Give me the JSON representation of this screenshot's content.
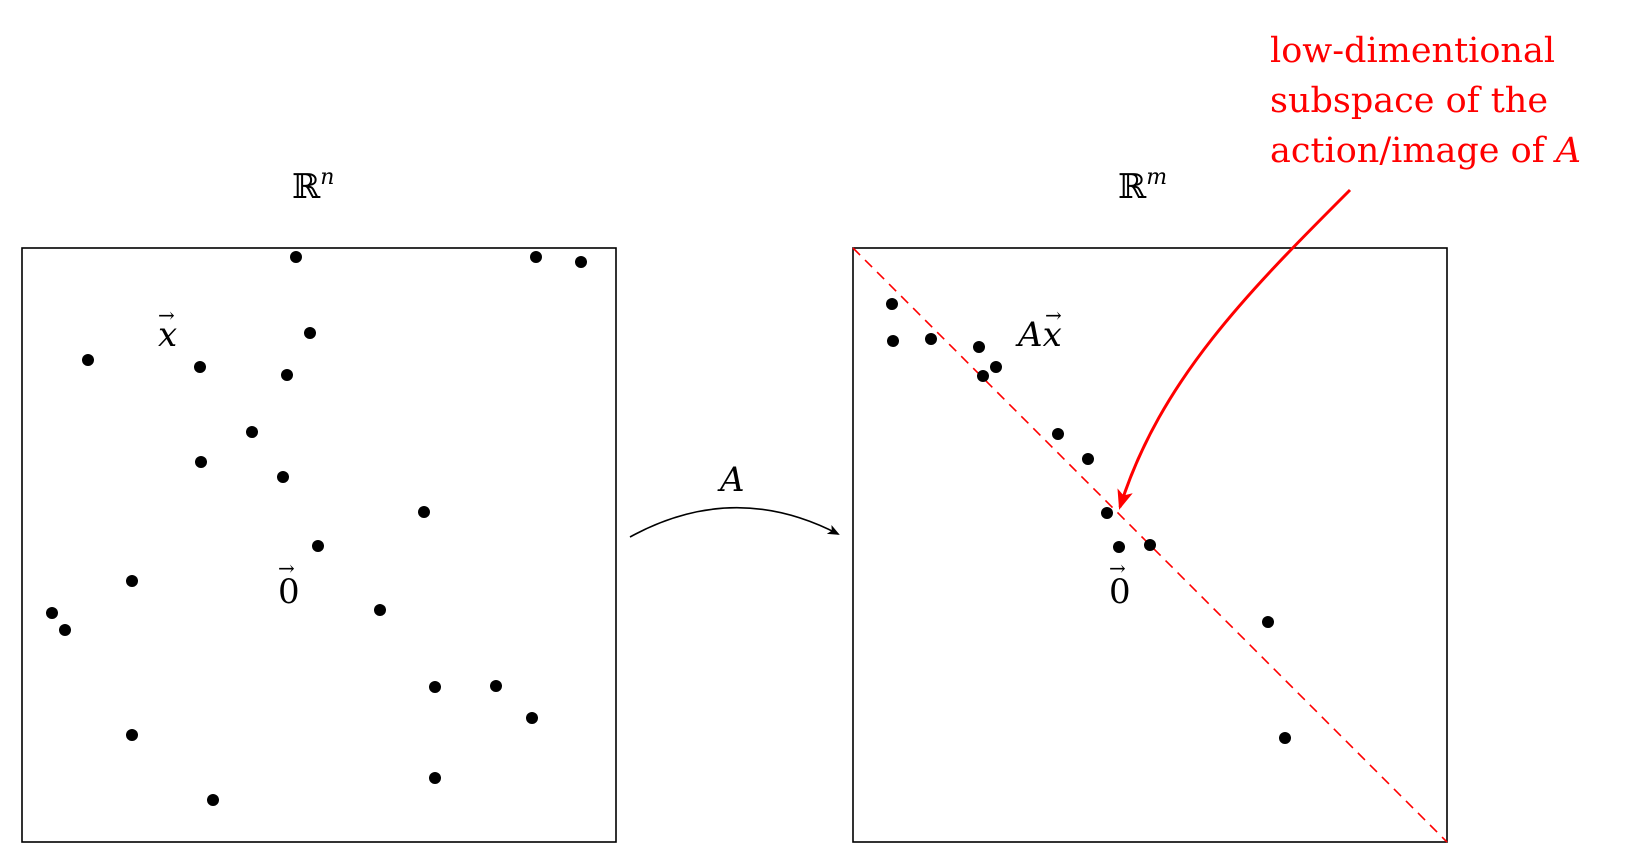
{
  "colors": {
    "ink": "#000000",
    "accent": "#ff0000"
  },
  "left_panel": {
    "space_symbol": "ℝ",
    "space_exponent": "n",
    "vector_label": "x",
    "vector_arrow": "→",
    "zero_label": "0",
    "zero_arrow": "→"
  },
  "mapping": {
    "label": "A"
  },
  "right_panel": {
    "space_symbol": "ℝ",
    "space_exponent": "m",
    "vector_label_prefix": "A",
    "vector_label": "x",
    "vector_arrow": "→",
    "zero_label": "0",
    "zero_arrow": "→"
  },
  "annotation": {
    "lines": [
      "low-dimentional",
      "subspace of the",
      "action/image of "
    ],
    "italic_tail": "A"
  }
}
